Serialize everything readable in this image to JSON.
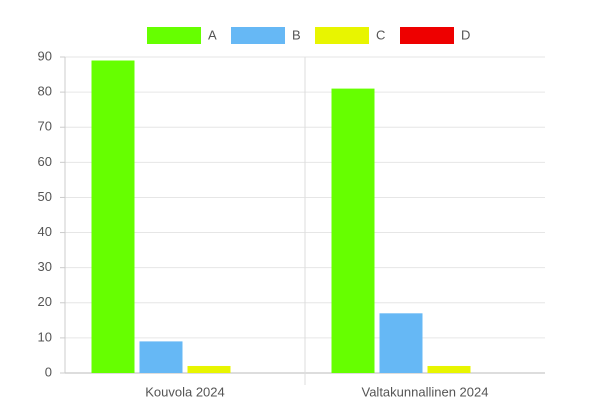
{
  "chart_data": {
    "type": "bar",
    "categories": [
      "Kouvola 2024",
      "Valtakunnallinen 2024"
    ],
    "series": [
      {
        "name": "A",
        "color": "#66ff00",
        "values": [
          89,
          81
        ]
      },
      {
        "name": "B",
        "color": "#66b8f5",
        "values": [
          9,
          17
        ]
      },
      {
        "name": "C",
        "color": "#e8f500",
        "values": [
          2,
          2
        ]
      },
      {
        "name": "D",
        "color": "#ee0000",
        "values": [
          0,
          0
        ]
      }
    ],
    "ylim": [
      0,
      90
    ],
    "yticks": [
      0,
      10,
      20,
      30,
      40,
      50,
      60,
      70,
      80,
      90
    ],
    "grid": true,
    "legend": "top"
  }
}
